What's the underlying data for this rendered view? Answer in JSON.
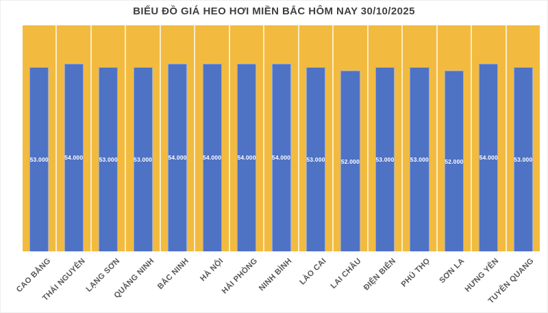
{
  "chart_data": {
    "type": "bar",
    "title": "BIỂU ĐỒ GIÁ HEO HƠI MIỀN BẮC HÔM NAY 30/10/2025",
    "categories": [
      "CAO BẰNG",
      "THÁI NGUYÊN",
      "LẠNG SƠN",
      "QUẢNG NINH",
      "BẮC NINH",
      "HÀ NỘI",
      "HẢI PHÒNG",
      "NINH BÌNH",
      "LÀO CAI",
      "LAI CHÂU",
      "ĐIỆN BIÊN",
      "PHÚ THỌ",
      "SƠN LA",
      "HƯNG YÊN",
      "TUYÊN QUANG"
    ],
    "values": [
      53000,
      54000,
      53000,
      53000,
      54000,
      54000,
      54000,
      54000,
      53000,
      52000,
      53000,
      53000,
      52000,
      54000,
      53000
    ],
    "value_labels": [
      "53.000",
      "54.000",
      "53.000",
      "53.000",
      "54.000",
      "54.000",
      "54.000",
      "54.000",
      "53.000",
      "52.000",
      "53.000",
      "53.000",
      "52.000",
      "54.000",
      "53.000"
    ],
    "xlabel": "",
    "ylabel": "",
    "ylim": [
      0,
      65000
    ],
    "grid": "vertical white column separators only",
    "legend": "none",
    "axis_label_rotation_deg": -45,
    "value_label_position": "inside-center",
    "colors": {
      "bar": "#4E72C4",
      "plot_background": "#F2BB40",
      "value_label": "#FFFFFF",
      "title": "#3F3F3F",
      "axis_label": "#595959",
      "column_separator": "#FFFFFF",
      "page_background": "#FFFFFF"
    }
  }
}
